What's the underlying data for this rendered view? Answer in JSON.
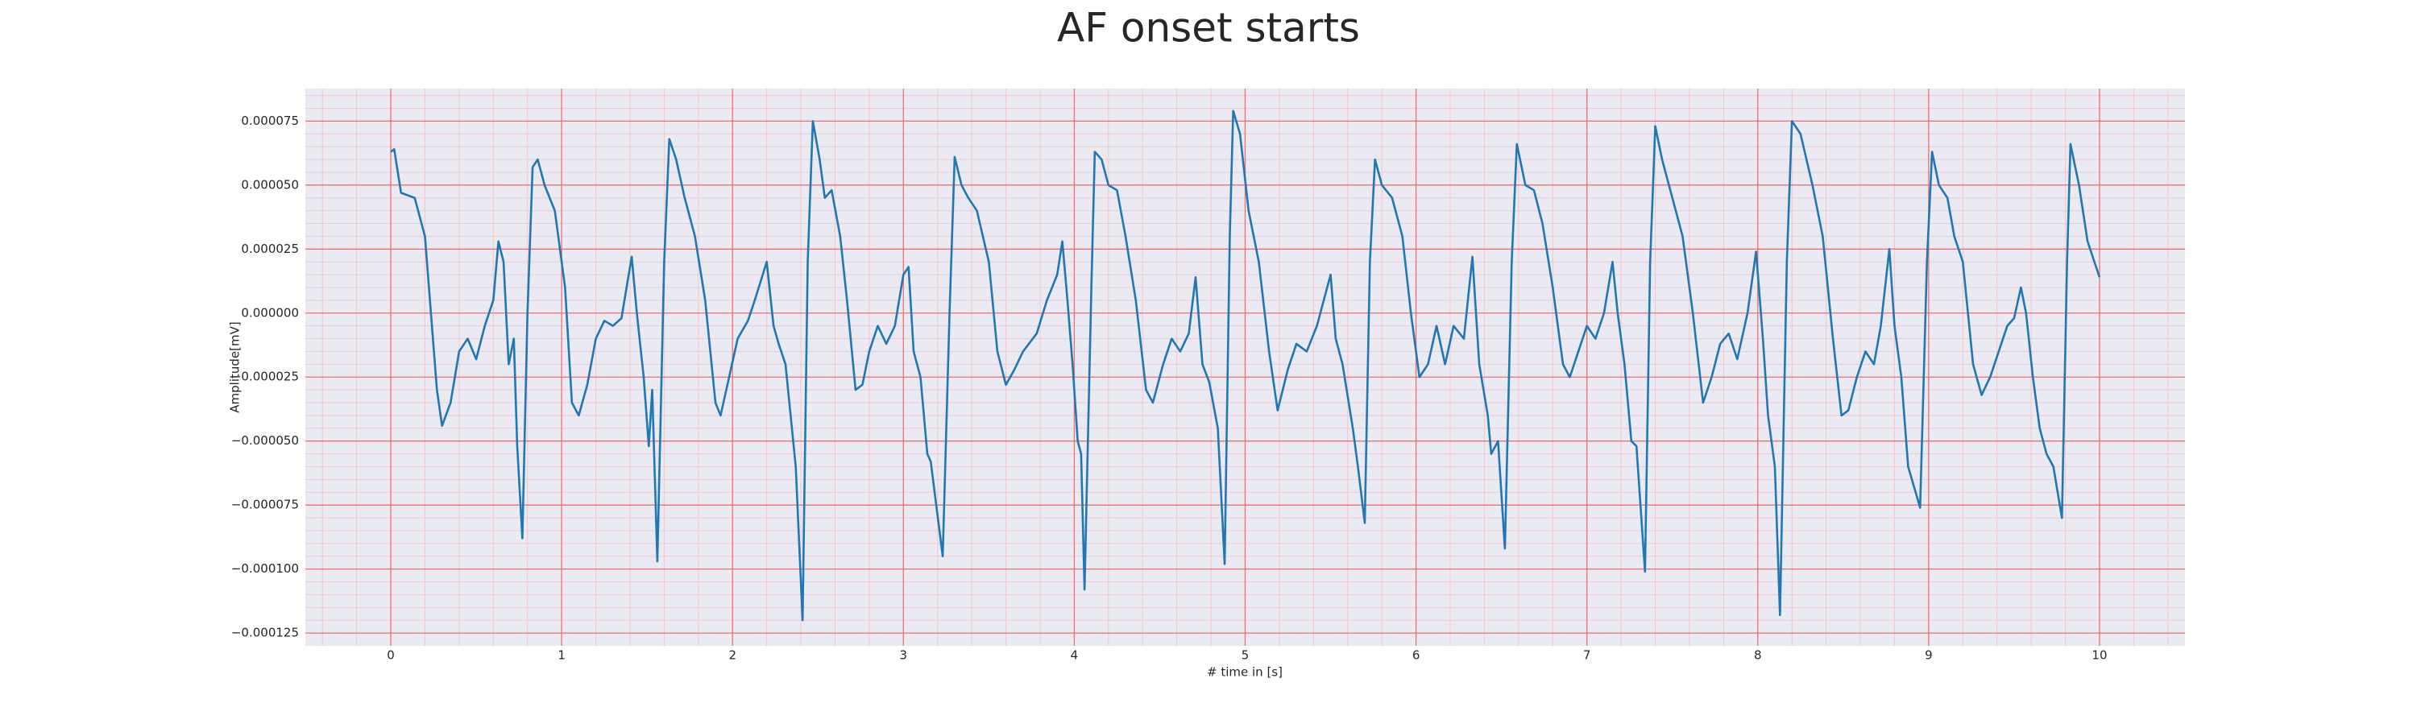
{
  "chart_data": {
    "type": "line",
    "title": "AF onset starts",
    "x_label": "# time in [s]",
    "y_label": "Amplitude[mV]",
    "color": "#1f77b4",
    "grid": true,
    "minor_grid": true,
    "xlim": [
      -0.5,
      10.5
    ],
    "xticks": [
      0,
      1,
      2,
      3,
      4,
      5,
      6,
      7,
      8,
      9,
      10
    ],
    "ylim": [
      -0.00013,
      8.77e-05
    ],
    "yticks": [
      {
        "value": -0.000125,
        "label": "−0.000125"
      },
      {
        "value": -0.0001,
        "label": "−0.000100"
      },
      {
        "value": -7.5e-05,
        "label": "−0.000075"
      },
      {
        "value": -5e-05,
        "label": "−0.000050"
      },
      {
        "value": -2.5e-05,
        "label": "−0.000025"
      },
      {
        "value": 0,
        "label": "0.000000"
      },
      {
        "value": 2.5e-05,
        "label": "0.000025"
      },
      {
        "value": 5e-05,
        "label": "0.000050"
      },
      {
        "value": 7.5e-05,
        "label": "0.000075"
      }
    ],
    "x": [
      0,
      0.02,
      0.06,
      0.14,
      0.2,
      0.27,
      0.3,
      0.35,
      0.4,
      0.45,
      0.5,
      0.55,
      0.6,
      0.63,
      0.66,
      0.69,
      0.72,
      0.74,
      0.77,
      0.8,
      0.83,
      0.86,
      0.9,
      0.96,
      1.02,
      1.06,
      1.1,
      1.15,
      1.2,
      1.25,
      1.3,
      1.35,
      1.41,
      1.44,
      1.48,
      1.51,
      1.53,
      1.56,
      1.6,
      1.63,
      1.67,
      1.72,
      1.78,
      1.84,
      1.9,
      1.93,
      1.98,
      2.03,
      2.09,
      2.13,
      2.2,
      2.24,
      2.27,
      2.31,
      2.37,
      2.41,
      2.44,
      2.47,
      2.51,
      2.54,
      2.58,
      2.63,
      2.67,
      2.72,
      2.76,
      2.8,
      2.85,
      2.9,
      2.95,
      3.0,
      3.03,
      3.06,
      3.1,
      3.14,
      3.16,
      3.23,
      3.27,
      3.3,
      3.34,
      3.38,
      3.43,
      3.5,
      3.55,
      3.6,
      3.65,
      3.7,
      3.78,
      3.84,
      3.9,
      3.93,
      3.96,
      3.99,
      4.02,
      4.04,
      4.06,
      4.1,
      4.12,
      4.16,
      4.2,
      4.25,
      4.3,
      4.36,
      4.42,
      4.46,
      4.52,
      4.57,
      4.62,
      4.67,
      4.71,
      4.75,
      4.79,
      4.84,
      4.88,
      4.91,
      4.93,
      4.97,
      5.02,
      5.08,
      5.14,
      5.19,
      5.25,
      5.3,
      5.36,
      5.42,
      5.5,
      5.53,
      5.57,
      5.63,
      5.66,
      5.7,
      5.73,
      5.76,
      5.8,
      5.86,
      5.92,
      5.97,
      6.02,
      6.07,
      6.12,
      6.17,
      6.22,
      6.28,
      6.33,
      6.37,
      6.42,
      6.44,
      6.48,
      6.52,
      6.56,
      6.59,
      6.64,
      6.69,
      6.74,
      6.8,
      6.86,
      6.9,
      6.95,
      7.0,
      7.05,
      7.1,
      7.15,
      7.18,
      7.22,
      7.26,
      7.29,
      7.34,
      7.37,
      7.4,
      7.44,
      7.5,
      7.56,
      7.62,
      7.68,
      7.73,
      7.78,
      7.83,
      7.88,
      7.94,
      7.99,
      8.03,
      8.06,
      8.1,
      8.13,
      8.17,
      8.2,
      8.25,
      8.32,
      8.38,
      8.44,
      8.49,
      8.53,
      8.58,
      8.63,
      8.68,
      8.72,
      8.77,
      8.8,
      8.84,
      8.88,
      8.95,
      8.99,
      9.02,
      9.06,
      9.11,
      9.15,
      9.2,
      9.26,
      9.31,
      9.36,
      9.41,
      9.46,
      9.5,
      9.54,
      9.57,
      9.61,
      9.65,
      9.69,
      9.73,
      9.78,
      9.81,
      9.83,
      9.88,
      9.93,
      10.0
    ],
    "values": [
      6.3e-05,
      6.4e-05,
      4.7e-05,
      4.5e-05,
      3e-05,
      -3e-05,
      -4.4e-05,
      -3.5e-05,
      -1.5e-05,
      -1e-05,
      -1.8e-05,
      -5e-06,
      5e-06,
      2.8e-05,
      2e-05,
      -2e-05,
      -1e-05,
      -5.2e-05,
      -8.8e-05,
      0,
      5.7e-05,
      6e-05,
      5e-05,
      4e-05,
      1e-05,
      -3.5e-05,
      -4e-05,
      -2.8e-05,
      -1e-05,
      -3e-06,
      -5e-06,
      -2e-06,
      2.2e-05,
      0,
      -2.5e-05,
      -5.2e-05,
      -3e-05,
      -9.7e-05,
      2e-05,
      6.8e-05,
      6e-05,
      4.5e-05,
      3e-05,
      5e-06,
      -3.5e-05,
      -4e-05,
      -2.5e-05,
      -1e-05,
      -3e-06,
      5e-06,
      2e-05,
      -5e-06,
      -1.2e-05,
      -2e-05,
      -6e-05,
      -0.00012,
      2e-05,
      7.5e-05,
      6e-05,
      4.5e-05,
      4.8e-05,
      3e-05,
      5e-06,
      -3e-05,
      -2.8e-05,
      -1.5e-05,
      -5e-06,
      -1.2e-05,
      -5e-06,
      1.5e-05,
      1.8e-05,
      -1.5e-05,
      -2.5e-05,
      -5.5e-05,
      -5.8e-05,
      -9.5e-05,
      0,
      6.1e-05,
      5e-05,
      4.5e-05,
      4e-05,
      2e-05,
      -1.5e-05,
      -2.8e-05,
      -2.2e-05,
      -1.5e-05,
      -8e-06,
      5e-06,
      1.5e-05,
      2.8e-05,
      5e-06,
      -2e-05,
      -5e-05,
      -5.5e-05,
      -0.000108,
      1e-05,
      6.3e-05,
      6e-05,
      5e-05,
      4.8e-05,
      3e-05,
      5e-06,
      -3e-05,
      -3.5e-05,
      -2e-05,
      -1e-05,
      -1.5e-05,
      -8e-06,
      1.4e-05,
      -2e-05,
      -2.7e-05,
      -4.5e-05,
      -9.8e-05,
      3e-05,
      7.9e-05,
      7e-05,
      4e-05,
      2e-05,
      -1.5e-05,
      -3.8e-05,
      -2.2e-05,
      -1.2e-05,
      -1.5e-05,
      -5e-06,
      1.5e-05,
      -1e-05,
      -2e-05,
      -4.5e-05,
      -6e-05,
      -8.2e-05,
      2e-05,
      6e-05,
      5e-05,
      4.5e-05,
      3e-05,
      0,
      -2.5e-05,
      -2e-05,
      -5e-06,
      -2e-05,
      -5e-06,
      -1e-05,
      2.2e-05,
      -2e-05,
      -4e-05,
      -5.5e-05,
      -5e-05,
      -9.2e-05,
      2e-05,
      6.6e-05,
      5e-05,
      4.8e-05,
      3.5e-05,
      1e-05,
      -2e-05,
      -2.5e-05,
      -1.5e-05,
      -5e-06,
      -1e-05,
      0,
      2e-05,
      0,
      -2e-05,
      -5e-05,
      -5.2e-05,
      -0.000101,
      2e-05,
      7.3e-05,
      6e-05,
      4.5e-05,
      3e-05,
      0,
      -3.5e-05,
      -2.5e-05,
      -1.2e-05,
      -8e-06,
      -1.8e-05,
      0,
      2.4e-05,
      -1e-05,
      -4e-05,
      -6e-05,
      -0.000118,
      2e-05,
      7.5e-05,
      7e-05,
      5e-05,
      3e-05,
      -1e-05,
      -4e-05,
      -3.8e-05,
      -2.5e-05,
      -1.5e-05,
      -2e-05,
      -5e-06,
      2.5e-05,
      -5e-06,
      -2.5e-05,
      -6e-05,
      -7.6e-05,
      2e-05,
      6.3e-05,
      5e-05,
      4.5e-05,
      3e-05,
      2e-05,
      -2e-05,
      -3.2e-05,
      -2.5e-05,
      -1.5e-05,
      -5e-06,
      -2e-06,
      1e-05,
      0,
      -2.5e-05,
      -4.5e-05,
      -5.5e-05,
      -6e-05,
      -8e-05,
      2e-05,
      6.6e-05,
      5e-05,
      2.8e-05,
      1.4e-05
    ]
  }
}
